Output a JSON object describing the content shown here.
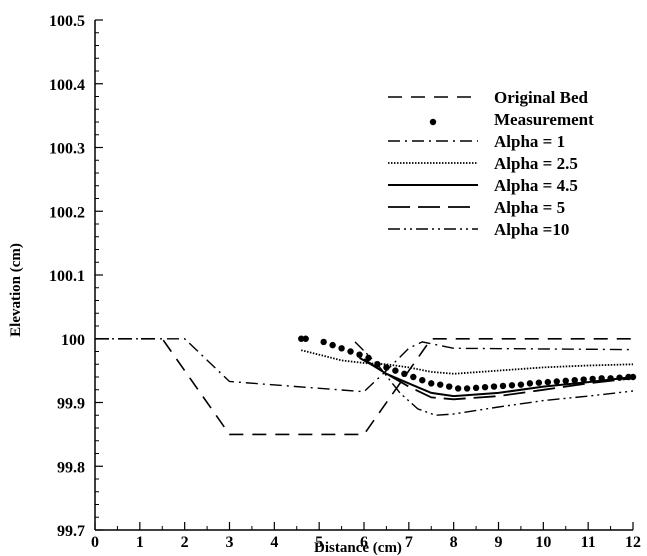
{
  "chart_data": {
    "type": "line",
    "title": "",
    "xlabel": "Distance (cm)",
    "ylabel": "Elevation (cm)",
    "xlim": [
      0,
      12
    ],
    "ylim": [
      99.7,
      100.5
    ],
    "xticks": [
      "0",
      "1",
      "2",
      "3",
      "4",
      "5",
      "6",
      "7",
      "8",
      "9",
      "10",
      "11",
      "12"
    ],
    "yticks": [
      "99.7",
      "99.8",
      "99.9",
      "100",
      "100.1",
      "100.2",
      "100.3",
      "100.4",
      "100.5"
    ],
    "grid": false,
    "legend_position": "top-right",
    "series": [
      {
        "name": "Original Bed",
        "style": "dashed",
        "x": [
          0,
          1.5,
          3,
          4.5,
          6,
          7.5,
          12
        ],
        "y": [
          100,
          100,
          99.85,
          99.85,
          99.85,
          100,
          100
        ]
      },
      {
        "name": "Measurement",
        "style": "points",
        "x": [
          4.6,
          4.7,
          5.1,
          5.3,
          5.5,
          5.7,
          5.9,
          6.1,
          6.3,
          6.5,
          6.7,
          6.9,
          7.1,
          7.3,
          7.5,
          7.7,
          7.9,
          8.1,
          8.3,
          8.5,
          8.7,
          8.9,
          9.1,
          9.3,
          9.5,
          9.7,
          9.9,
          10.1,
          10.3,
          10.5,
          10.7,
          10.9,
          11.1,
          11.3,
          11.5,
          11.7,
          11.9,
          12.0
        ],
        "y": [
          100.0,
          100.0,
          99.995,
          99.99,
          99.985,
          99.98,
          99.975,
          99.97,
          99.96,
          99.955,
          99.95,
          99.945,
          99.94,
          99.935,
          99.93,
          99.928,
          99.925,
          99.922,
          99.922,
          99.923,
          99.924,
          99.925,
          99.926,
          99.927,
          99.928,
          99.93,
          99.931,
          99.932,
          99.933,
          99.934,
          99.935,
          99.936,
          99.937,
          99.938,
          99.938,
          99.939,
          99.94,
          99.94
        ]
      },
      {
        "name": "Alpha = 1",
        "style": "dashdot",
        "x": [
          0,
          1.5,
          2.0,
          3.0,
          6.0,
          6.5,
          7.0,
          7.3,
          8.0,
          12.0
        ],
        "y": [
          100,
          100,
          100,
          99.933,
          99.917,
          99.95,
          99.985,
          99.995,
          99.985,
          99.983
        ]
      },
      {
        "name": "Alpha = 2.5",
        "style": "dotted",
        "x": [
          4.6,
          5.0,
          5.5,
          6.0,
          6.5,
          7.0,
          7.5,
          8.0,
          9.0,
          10.0,
          11.0,
          12.0
        ],
        "y": [
          99.982,
          99.975,
          99.966,
          99.962,
          99.96,
          99.955,
          99.948,
          99.945,
          99.95,
          99.955,
          99.958,
          99.96
        ]
      },
      {
        "name": "Alpha = 4.5",
        "style": "solid",
        "x": [
          5.9,
          6.2,
          6.5,
          7.0,
          7.5,
          8.0,
          9.0,
          10.0,
          11.0,
          12.0
        ],
        "y": [
          99.97,
          99.958,
          99.945,
          99.93,
          99.915,
          99.91,
          99.915,
          99.925,
          99.932,
          99.94
        ]
      },
      {
        "name": "Alpha = 5",
        "style": "longdash",
        "x": [
          6.0,
          6.5,
          7.0,
          7.5,
          8.0,
          9.0,
          10.0,
          11.0,
          12.0
        ],
        "y": [
          99.968,
          99.945,
          99.925,
          99.908,
          99.905,
          99.91,
          99.92,
          99.93,
          99.938
        ]
      },
      {
        "name": "Alpha =10",
        "style": "dashdotdot",
        "x": [
          5.8,
          6.3,
          6.8,
          7.2,
          7.6,
          8.0,
          9.0,
          10.0,
          11.0,
          12.0
        ],
        "y": [
          99.995,
          99.96,
          99.915,
          99.89,
          99.88,
          99.882,
          99.893,
          99.903,
          99.91,
          99.918
        ]
      }
    ]
  }
}
